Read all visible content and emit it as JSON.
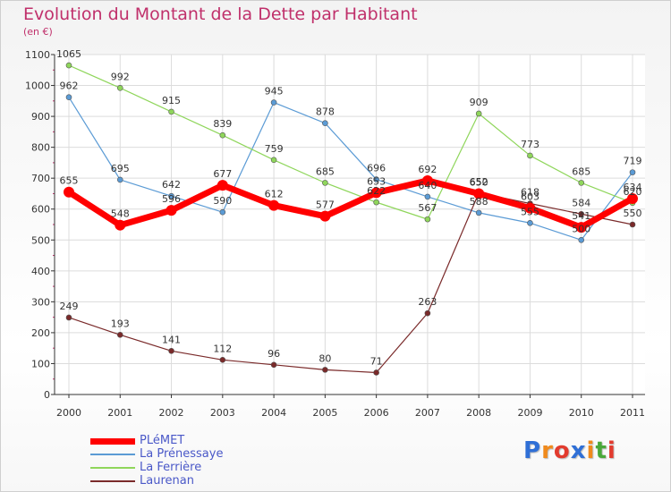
{
  "header": {
    "title": "Evolution du Montant de la Dette par Habitant",
    "subtitle": "(en €)"
  },
  "logo": {
    "letters": [
      "P",
      "r",
      "o",
      "x",
      "i",
      "t",
      "i"
    ],
    "colors": [
      "#2f6fd6",
      "#f08a1c",
      "#e23b2e",
      "#2f6fd6",
      "#f08a1c",
      "#4aa83a",
      "#e23b2e"
    ]
  },
  "chart_data": {
    "type": "line",
    "title": "Evolution du Montant de la Dette par Habitant",
    "subtitle": "(en €)",
    "xlabel": "",
    "ylabel": "",
    "x": [
      "2000",
      "2001",
      "2002",
      "2003",
      "2004",
      "2005",
      "2006",
      "2007",
      "2008",
      "2009",
      "2010",
      "2011"
    ],
    "ylim": [
      0,
      1100
    ],
    "yticks": [
      0,
      100,
      200,
      300,
      400,
      500,
      600,
      700,
      800,
      900,
      1000,
      1100
    ],
    "grid": true,
    "legend": "bottom-left",
    "series": [
      {
        "name": "PLéMET",
        "color": "#ff0000",
        "values": [
          655,
          548,
          596,
          677,
          612,
          577,
          653,
          692,
          650,
          603,
          541,
          634
        ]
      },
      {
        "name": "La Prénessaye",
        "color": "#5b9bd5",
        "values": [
          962,
          695,
          642,
          590,
          945,
          878,
          696,
          640,
          588,
          555,
          500,
          719
        ]
      },
      {
        "name": "La Ferrière",
        "color": "#8fd65b",
        "values": [
          1065,
          992,
          915,
          839,
          759,
          685,
          622,
          567,
          909,
          773,
          685,
          620
        ]
      },
      {
        "name": "Laurenan",
        "color": "#7a2a2a",
        "values": [
          249,
          193,
          141,
          112,
          96,
          80,
          71,
          263,
          652,
          618,
          584,
          550
        ]
      }
    ]
  }
}
